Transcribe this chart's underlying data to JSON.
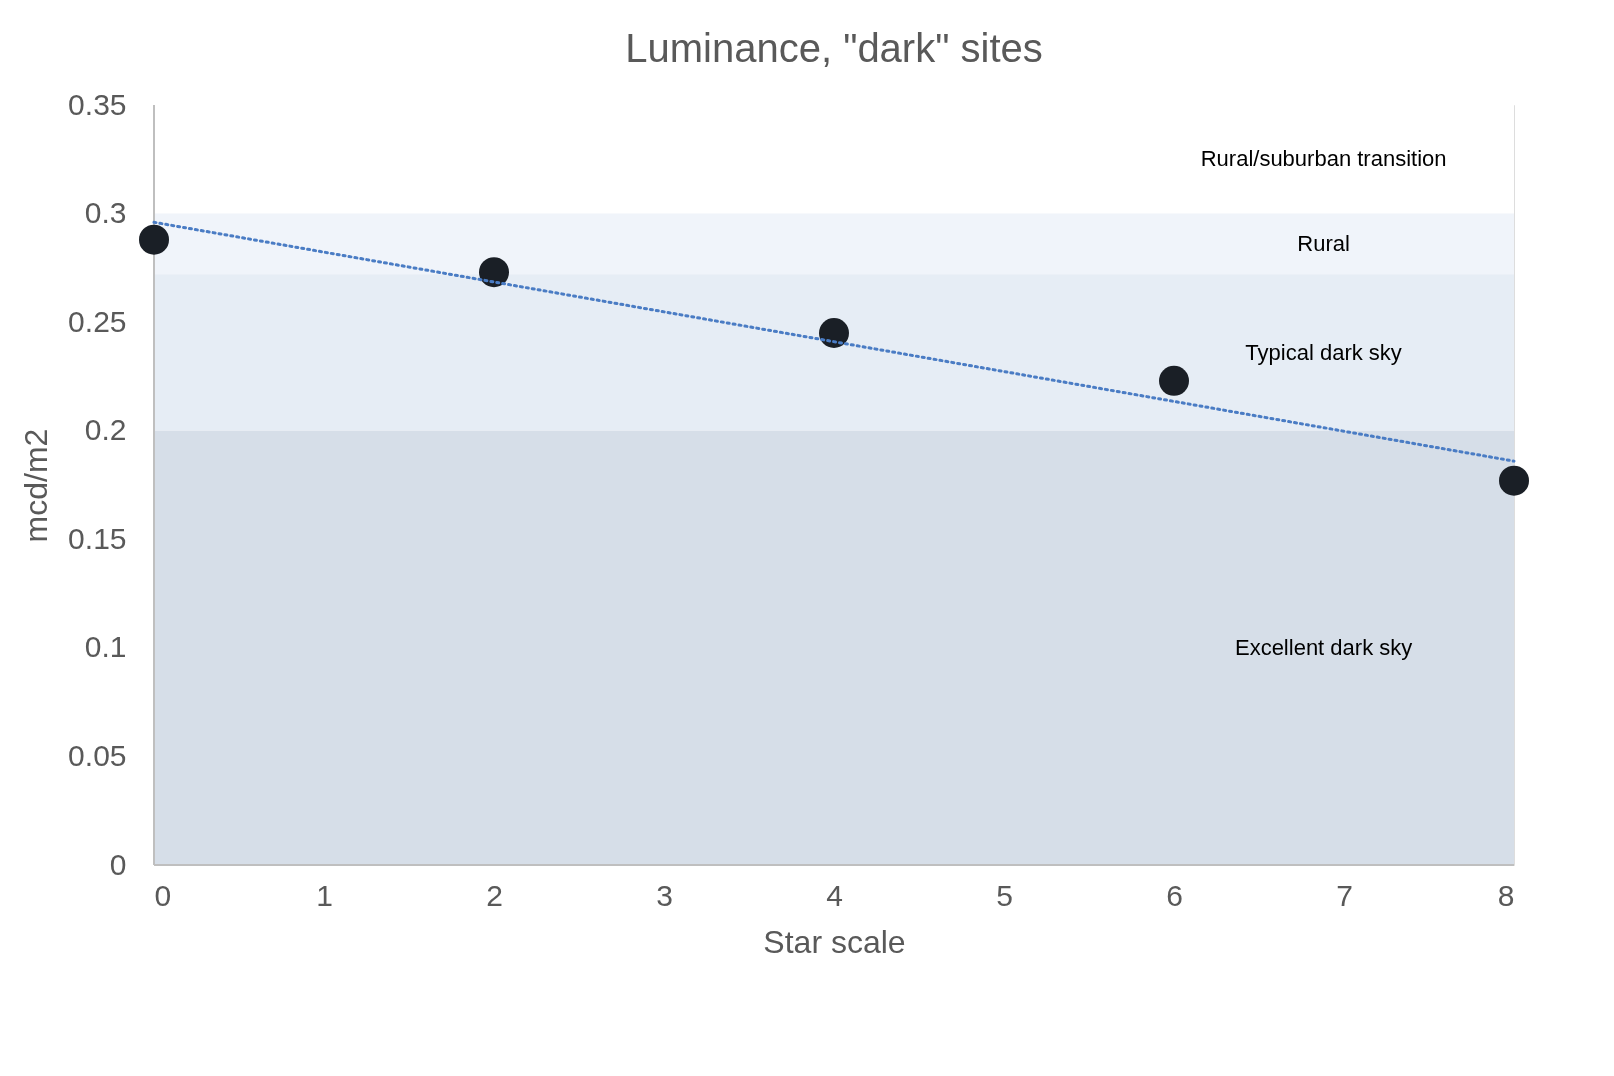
{
  "chart_data": {
    "type": "scatter",
    "title": "Luminance, \"dark\" sites",
    "xlabel": "Star scale",
    "ylabel": "mcd/m2",
    "x": [
      0,
      2,
      4,
      6,
      8
    ],
    "series": [
      {
        "color": "#1a1f26",
        "marker": "circle",
        "values": [
          0.288,
          0.273,
          0.245,
          0.223,
          0.177
        ]
      },
      {
        "type": "line",
        "color": "#4a7cc4",
        "line_style": "dotted",
        "marker": "none",
        "x": [
          0,
          8
        ],
        "values": [
          0.296,
          0.186
        ]
      }
    ],
    "bands": [
      {
        "axis": "y",
        "from": 0.3,
        "to": 0.35,
        "label": "Rural/suburban transition",
        "color": "#ffffff"
      },
      {
        "axis": "y",
        "from": 0.272,
        "to": 0.3,
        "label": "Rural",
        "color": "#f0f4fa"
      },
      {
        "axis": "y",
        "from": 0.2,
        "to": 0.272,
        "label": "Typical dark sky",
        "color": "#e6edf5"
      },
      {
        "axis": "y",
        "from": 0,
        "to": 0.2,
        "label": "Excellent dark sky",
        "color": "#d6dee8"
      }
    ],
    "xlim": [
      0,
      8
    ],
    "xticks": [
      0,
      1,
      2,
      3,
      4,
      5,
      6,
      7,
      8
    ],
    "ylim": [
      0,
      0.35
    ],
    "yticks": [
      0,
      0.05,
      0.1,
      0.15,
      0.2,
      0.25,
      0.3,
      0.35
    ],
    "grid": false,
    "legend": false
  }
}
